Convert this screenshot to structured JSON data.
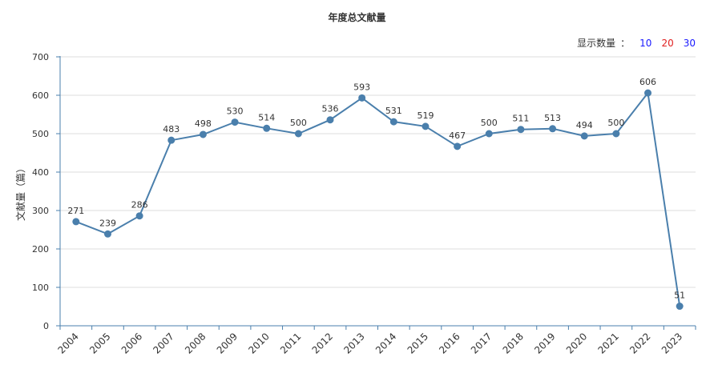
{
  "chart_data": {
    "type": "line",
    "title": "年度总文献量",
    "xlabel": "",
    "ylabel": "文献量（篇）",
    "ylim": [
      0,
      700
    ],
    "yticks": [
      0,
      100,
      200,
      300,
      400,
      500,
      600,
      700
    ],
    "categories": [
      "2004",
      "2005",
      "2006",
      "2007",
      "2008",
      "2009",
      "2010",
      "2011",
      "2012",
      "2013",
      "2014",
      "2015",
      "2016",
      "2017",
      "2018",
      "2019",
      "2020",
      "2021",
      "2022",
      "2023"
    ],
    "series": [
      {
        "name": "文献量",
        "values": [
          271,
          239,
          286,
          483,
          498,
          530,
          514,
          500,
          536,
          593,
          531,
          519,
          467,
          500,
          511,
          513,
          494,
          500,
          606,
          51
        ]
      }
    ],
    "grid": true,
    "line_color": "#4a7fac"
  },
  "controls": {
    "display_count_label": "显示数量",
    "separator": "：",
    "options": [
      {
        "label": "10",
        "color": "#1a1aff"
      },
      {
        "label": "20",
        "color": "#e02020"
      },
      {
        "label": "30",
        "color": "#1a1aff"
      }
    ]
  }
}
